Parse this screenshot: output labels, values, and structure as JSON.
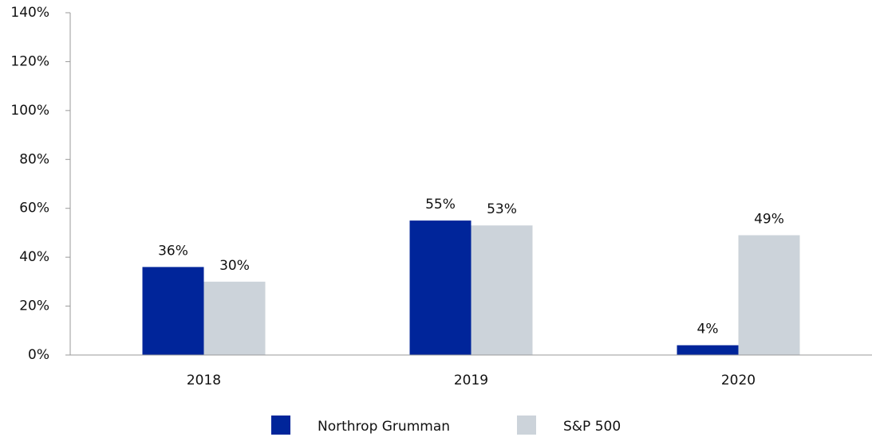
{
  "chart_data": {
    "type": "bar",
    "categories": [
      "2018",
      "2019",
      "2020"
    ],
    "series": [
      {
        "name": "Northrop Grumman",
        "color": "#00259a",
        "values": [
          36,
          55,
          4
        ],
        "value_labels": [
          "36%",
          "55%",
          "4%"
        ]
      },
      {
        "name": "S&P 500",
        "color": "#ccd3da",
        "values": [
          30,
          53,
          49
        ],
        "value_labels": [
          "30%",
          "53%",
          "49%"
        ]
      }
    ],
    "ylim": [
      0,
      140
    ],
    "yticks": [
      {
        "value": 0,
        "label": "0%"
      },
      {
        "value": 20,
        "label": "20%"
      },
      {
        "value": 40,
        "label": "40%"
      },
      {
        "value": 60,
        "label": "60%"
      },
      {
        "value": 80,
        "label": "80%"
      },
      {
        "value": 100,
        "label": "100%"
      },
      {
        "value": 120,
        "label": "120%"
      },
      {
        "value": 140,
        "label": "140%"
      }
    ],
    "grid": false,
    "legend": "bottom"
  }
}
